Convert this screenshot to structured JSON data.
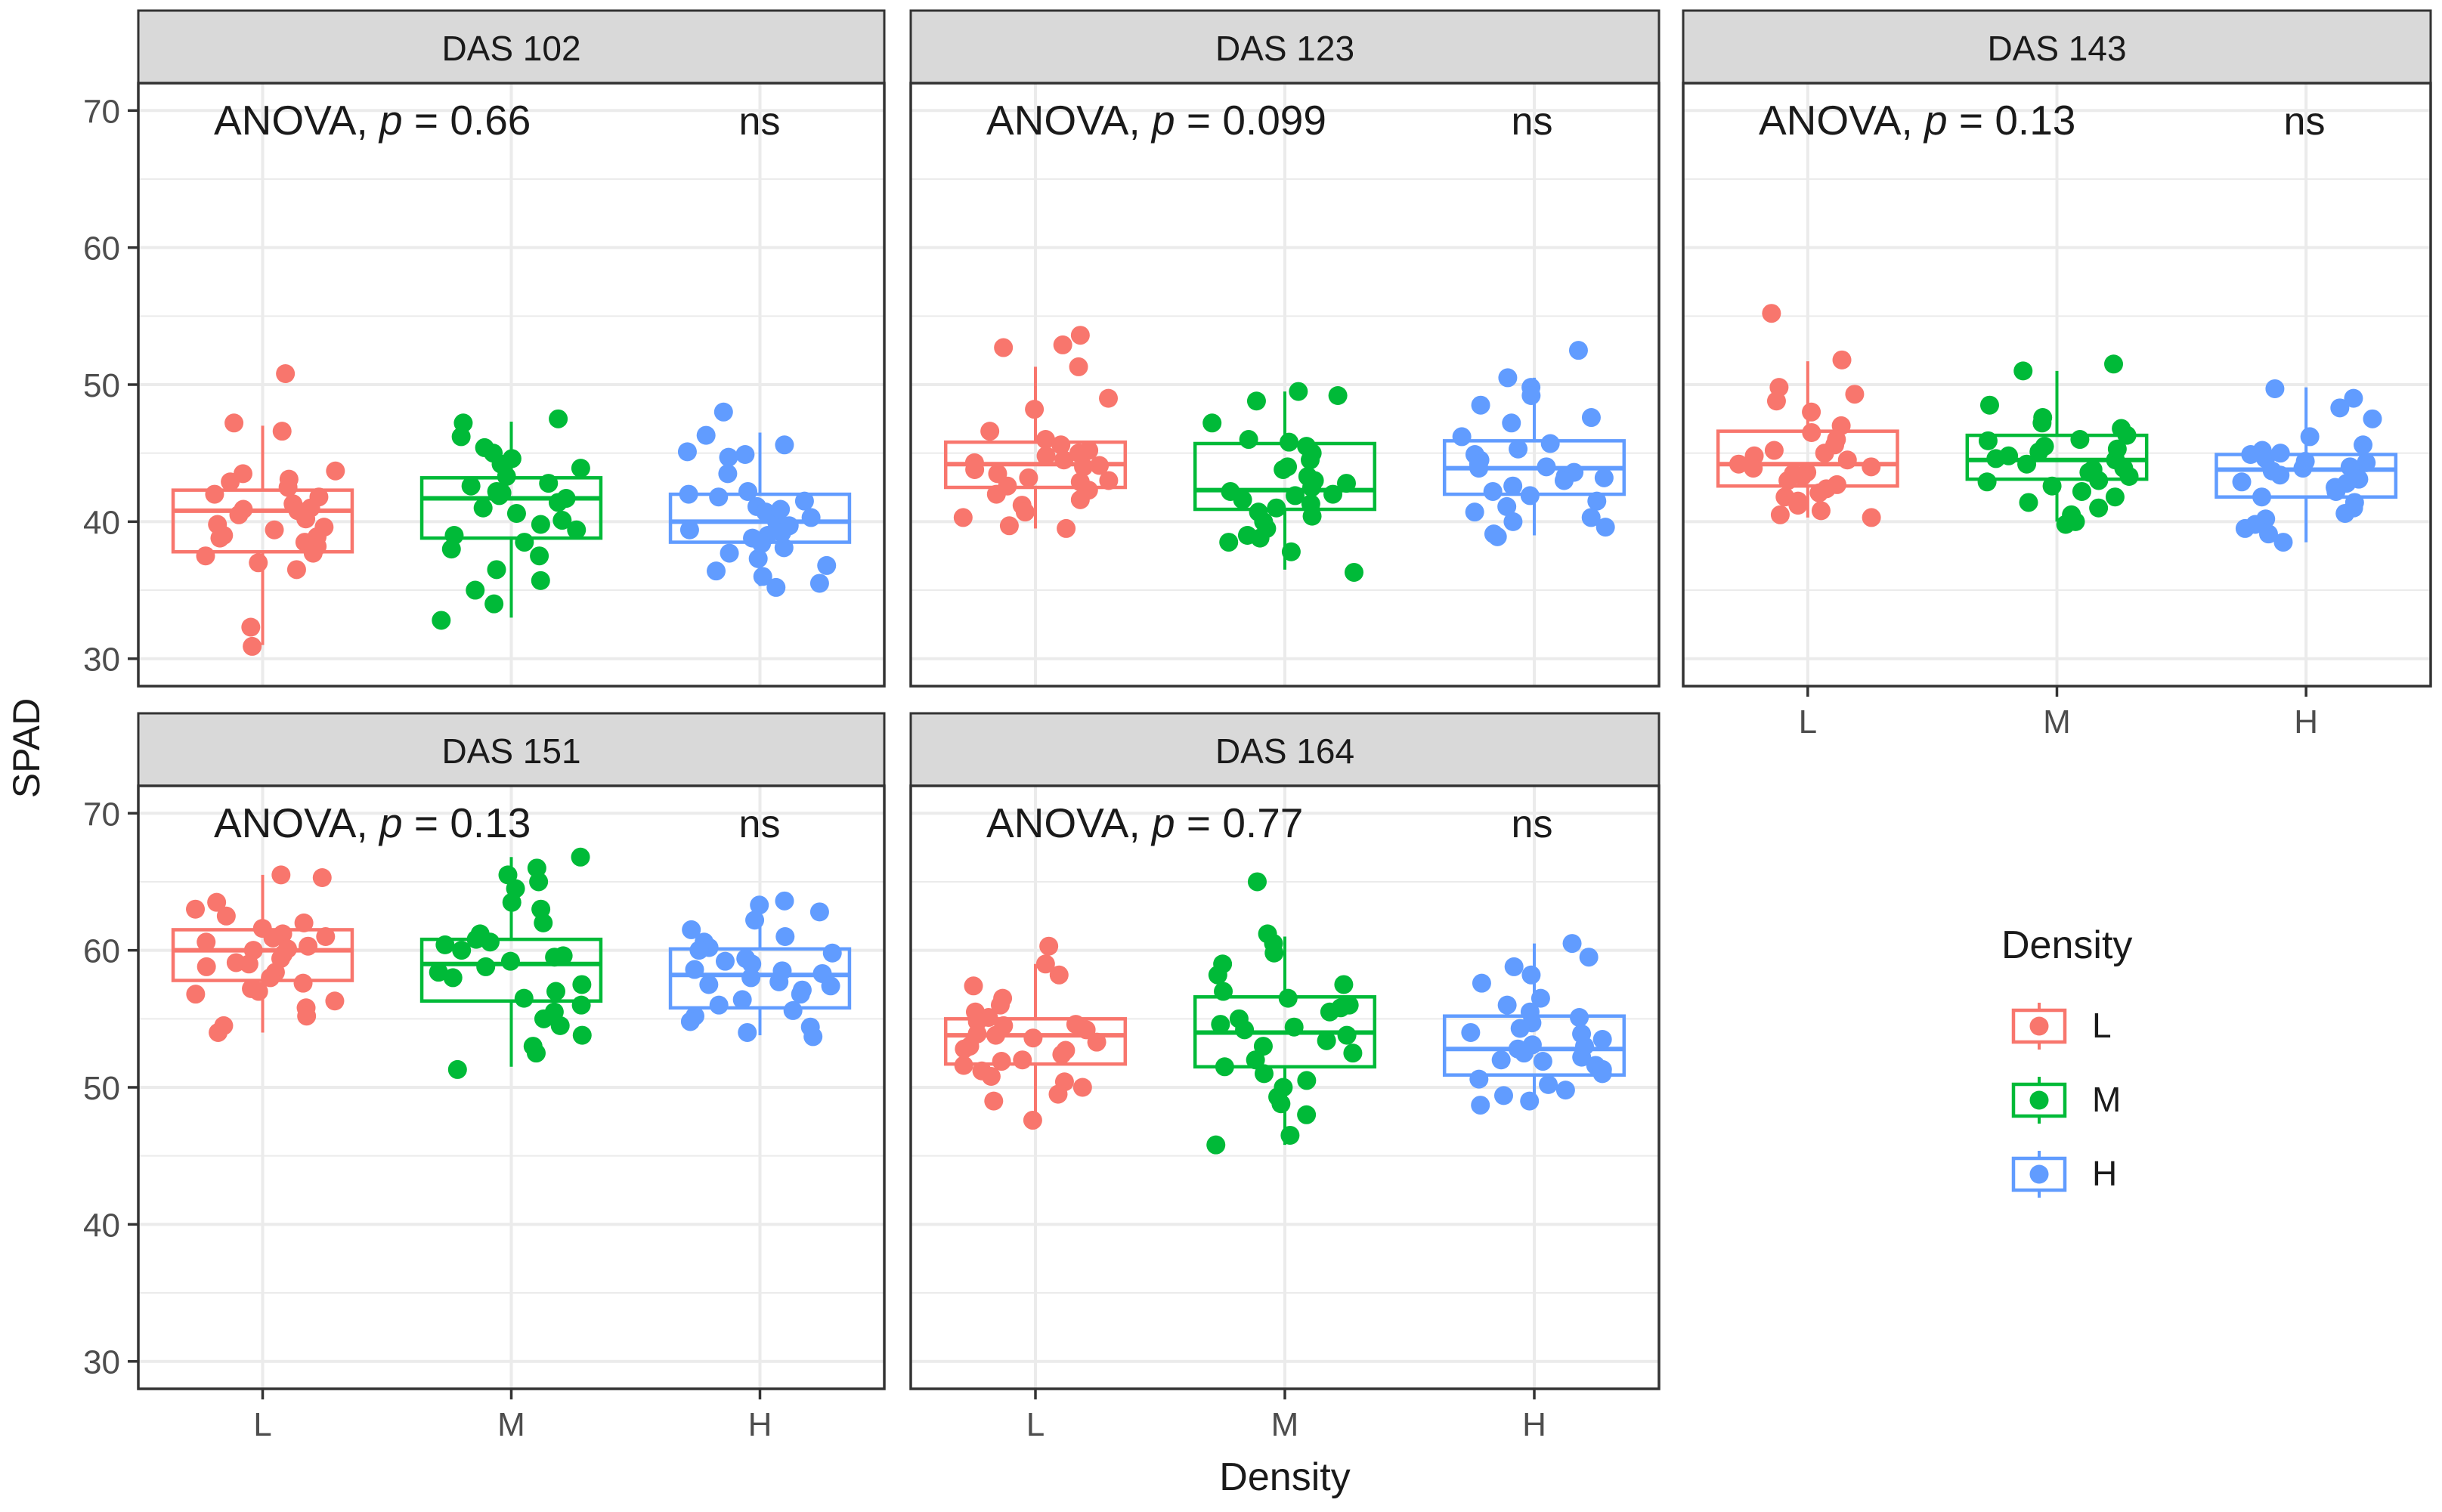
{
  "chart_data": {
    "type": "boxplot",
    "ylabel": "SPAD",
    "xlabel": "Density",
    "ylim": [
      28,
      72
    ],
    "yticks": [
      30,
      40,
      50,
      60,
      70
    ],
    "categories": [
      "L",
      "M",
      "H"
    ],
    "colors": {
      "L": "#F8766D",
      "M": "#00BA38",
      "H": "#619CFF"
    },
    "legend": {
      "title": "Density",
      "entries": [
        {
          "label": "L",
          "color": "#F8766D"
        },
        {
          "label": "M",
          "color": "#00BA38"
        },
        {
          "label": "H",
          "color": "#619CFF"
        }
      ]
    },
    "panels": [
      {
        "title": "DAS 102",
        "anova_prefix": "ANOVA, ",
        "anova_p": "p",
        "anova_value": " = 0.66",
        "significance": "ns",
        "boxes": [
          {
            "group": "L",
            "whisker_low": 31,
            "q1": 37.8,
            "median": 40.8,
            "q3": 42.3,
            "whisker_high": 47,
            "points": [
              50.8,
              47.2,
              46.6,
              43.7,
              43.1,
              42.5,
              42.0,
              41.8,
              41.3,
              41.0,
              40.8,
              40.5,
              40.2,
              39.8,
              39.4,
              39.0,
              38.8,
              38.5,
              38.2,
              37.7,
              37.5,
              37.0,
              36.5,
              43.5,
              42.9,
              40.9,
              39.6,
              38.9,
              32.3,
              30.9
            ]
          },
          {
            "group": "M",
            "whisker_low": 33,
            "q1": 38.8,
            "median": 41.7,
            "q3": 43.2,
            "whisker_high": 47.3,
            "points": [
              47.5,
              47.2,
              46.2,
              45.4,
              45.0,
              44.6,
              43.9,
              43.3,
              42.8,
              42.6,
              42.1,
              41.7,
              41.4,
              41.0,
              40.6,
              40.1,
              39.8,
              39.0,
              38.5,
              38.0,
              37.5,
              36.5,
              35.7,
              35.0,
              34.0,
              42.2,
              41.9,
              39.4,
              44.2,
              32.8
            ]
          },
          {
            "group": "H",
            "whisker_low": 35.3,
            "q1": 38.5,
            "median": 40.0,
            "q3": 42.0,
            "whisker_high": 46.5,
            "points": [
              48.0,
              46.3,
              45.6,
              45.1,
              44.7,
              43.5,
              42.2,
              41.8,
              41.5,
              41.1,
              40.7,
              40.3,
              40.0,
              39.7,
              39.4,
              39.0,
              38.8,
              38.4,
              38.1,
              37.7,
              37.3,
              36.8,
              36.4,
              36.0,
              35.5,
              35.2,
              42.0,
              40.9,
              39.2,
              44.9
            ]
          }
        ]
      },
      {
        "title": "DAS 123",
        "anova_prefix": "ANOVA, ",
        "anova_p": "p",
        "anova_value": " = 0.099",
        "significance": "ns",
        "boxes": [
          {
            "group": "L",
            "whisker_low": 39.5,
            "q1": 42.5,
            "median": 44.2,
            "q3": 45.8,
            "whisker_high": 51.3,
            "points": [
              53.6,
              52.9,
              52.7,
              51.3,
              49.0,
              48.2,
              46.6,
              46.0,
              45.6,
              45.2,
              44.8,
              44.5,
              44.3,
              44.1,
              43.8,
              43.5,
              43.2,
              42.9,
              42.6,
              42.3,
              42.0,
              41.6,
              41.2,
              40.7,
              40.3,
              39.7,
              39.5,
              44.0,
              45.0,
              43.0
            ]
          },
          {
            "group": "M",
            "whisker_low": 36.5,
            "q1": 40.9,
            "median": 42.3,
            "q3": 45.7,
            "whisker_high": 49.5,
            "points": [
              49.5,
              49.2,
              48.8,
              47.2,
              46.0,
              45.8,
              45.5,
              45.0,
              44.5,
              43.8,
              43.3,
              42.8,
              42.5,
              42.2,
              41.9,
              41.6,
              41.3,
              41.0,
              40.7,
              40.4,
              40.0,
              39.5,
              39.0,
              38.8,
              38.5,
              37.8,
              36.3,
              43.0,
              44.0,
              42.0
            ]
          },
          {
            "group": "H",
            "whisker_low": 39,
            "q1": 42.0,
            "median": 43.9,
            "q3": 45.9,
            "whisker_high": 50.5,
            "points": [
              52.5,
              50.5,
              49.8,
              49.2,
              48.5,
              47.6,
              47.2,
              46.2,
              45.7,
              45.3,
              44.9,
              44.5,
              44.2,
              43.9,
              43.6,
              43.3,
              43.0,
              42.6,
              42.2,
              41.9,
              41.5,
              41.1,
              40.7,
              40.3,
              40.0,
              39.6,
              39.1,
              38.9,
              44.0,
              43.2
            ]
          }
        ]
      },
      {
        "title": "DAS 143",
        "anova_prefix": "ANOVA, ",
        "anova_p": "p",
        "anova_value": " = 0.13",
        "significance": "ns",
        "boxes": [
          {
            "group": "L",
            "whisker_low": 40.3,
            "q1": 42.6,
            "median": 44.2,
            "q3": 46.6,
            "whisker_high": 51.7,
            "points": [
              55.2,
              51.8,
              49.8,
              49.3,
              48.8,
              48.0,
              47.0,
              46.5,
              46.0,
              45.6,
              45.2,
              44.8,
              44.5,
              44.2,
              43.9,
              43.6,
              43.3,
              43.0,
              42.7,
              42.4,
              42.1,
              41.8,
              41.5,
              41.2,
              40.8,
              40.5,
              40.3,
              44.0,
              45.0,
              43.5
            ]
          },
          {
            "group": "M",
            "whisker_low": 40,
            "q1": 43.1,
            "median": 44.5,
            "q3": 46.3,
            "whisker_high": 51,
            "points": [
              51.5,
              51.0,
              48.5,
              47.6,
              47.2,
              46.8,
              46.3,
              45.9,
              45.5,
              45.1,
              44.8,
              44.5,
              44.2,
              43.9,
              43.6,
              43.3,
              43.0,
              42.6,
              42.2,
              41.8,
              41.4,
              41.0,
              40.5,
              40.0,
              39.8,
              44.6,
              45.3,
              43.8,
              42.9,
              46.0
            ]
          },
          {
            "group": "H",
            "whisker_low": 38.5,
            "q1": 41.8,
            "median": 43.8,
            "q3": 44.9,
            "whisker_high": 49.8,
            "points": [
              49.7,
              49.0,
              48.3,
              47.5,
              46.2,
              45.6,
              45.2,
              44.9,
              44.6,
              44.3,
              44.0,
              43.7,
              43.4,
              43.1,
              42.8,
              42.5,
              42.2,
              41.8,
              41.4,
              41.0,
              40.6,
              40.2,
              39.8,
              39.5,
              39.1,
              38.5,
              43.9,
              44.4,
              42.9,
              45.0
            ]
          }
        ]
      },
      {
        "title": "DAS 151",
        "anova_prefix": "ANOVA, ",
        "anova_p": "p",
        "anova_value": " = 0.13",
        "significance": "ns",
        "boxes": [
          {
            "group": "L",
            "whisker_low": 54,
            "q1": 57.8,
            "median": 60.0,
            "q3": 61.5,
            "whisker_high": 65.5,
            "points": [
              65.5,
              65.3,
              63.5,
              63.0,
              62.5,
              62.0,
              61.6,
              61.2,
              60.9,
              60.6,
              60.3,
              60.0,
              59.7,
              59.4,
              59.1,
              58.8,
              58.4,
              58.0,
              57.6,
              57.2,
              56.8,
              56.3,
              55.8,
              55.2,
              54.5,
              54.0,
              60.1,
              61.0,
              59.0,
              57.0
            ]
          },
          {
            "group": "M",
            "whisker_low": 51.5,
            "q1": 56.3,
            "median": 59.0,
            "q3": 60.8,
            "whisker_high": 66.8,
            "points": [
              66.8,
              66.0,
              65.5,
              65.0,
              64.5,
              63.5,
              63.0,
              62.0,
              61.2,
              60.8,
              60.4,
              60.0,
              59.6,
              59.2,
              58.8,
              58.4,
              58.0,
              57.5,
              57.0,
              56.5,
              56.0,
              55.5,
              55.0,
              54.5,
              53.8,
              53.0,
              52.5,
              51.3,
              59.5,
              60.6
            ]
          },
          {
            "group": "H",
            "whisker_low": 53.8,
            "q1": 55.8,
            "median": 58.2,
            "q3": 60.1,
            "whisker_high": 63.5,
            "points": [
              63.6,
              63.3,
              62.8,
              62.2,
              61.5,
              61.0,
              60.6,
              60.2,
              59.8,
              59.4,
              59.0,
              58.6,
              58.3,
              58.0,
              57.7,
              57.4,
              57.1,
              56.8,
              56.4,
              56.0,
              55.6,
              55.2,
              54.8,
              54.4,
              54.0,
              53.7,
              58.5,
              59.2,
              57.5,
              60.0
            ]
          }
        ]
      },
      {
        "title": "DAS 164",
        "anova_prefix": "ANOVA, ",
        "anova_p": "p",
        "anova_value": " = 0.77",
        "significance": "ns",
        "boxes": [
          {
            "group": "L",
            "whisker_low": 47.6,
            "q1": 51.7,
            "median": 53.8,
            "q3": 55.0,
            "whisker_high": 59,
            "points": [
              60.3,
              59.0,
              58.2,
              57.4,
              56.5,
              56.0,
              55.5,
              55.1,
              54.8,
              54.5,
              54.2,
              53.9,
              53.6,
              53.3,
              53.0,
              52.7,
              52.4,
              52.0,
              51.6,
              51.2,
              50.8,
              50.4,
              50.0,
              49.5,
              49.0,
              47.6,
              53.8,
              54.6,
              52.8,
              51.9
            ]
          },
          {
            "group": "M",
            "whisker_low": 45.8,
            "q1": 51.5,
            "median": 54.0,
            "q3": 56.6,
            "whisker_high": 61,
            "points": [
              65.0,
              61.2,
              60.5,
              59.8,
              59.0,
              58.2,
              57.5,
              57.0,
              56.5,
              56.0,
              55.5,
              55.0,
              54.6,
              54.2,
              53.8,
              53.4,
              53.0,
              52.5,
              52.0,
              51.5,
              51.0,
              50.5,
              50.0,
              49.3,
              48.8,
              48.0,
              46.5,
              45.8,
              54.4,
              55.8
            ]
          },
          {
            "group": "H",
            "whisker_low": 48.8,
            "q1": 50.9,
            "median": 52.8,
            "q3": 55.2,
            "whisker_high": 60.5,
            "points": [
              60.5,
              59.5,
              58.8,
              58.2,
              57.6,
              56.5,
              56.0,
              55.5,
              55.1,
              54.7,
              54.3,
              53.9,
              53.5,
              53.1,
              52.8,
              52.5,
              52.2,
              51.9,
              51.6,
              51.3,
              51.0,
              50.6,
              50.2,
              49.8,
              49.4,
              49.0,
              48.7,
              53.0,
              52.0,
              54.0
            ]
          }
        ]
      }
    ]
  }
}
